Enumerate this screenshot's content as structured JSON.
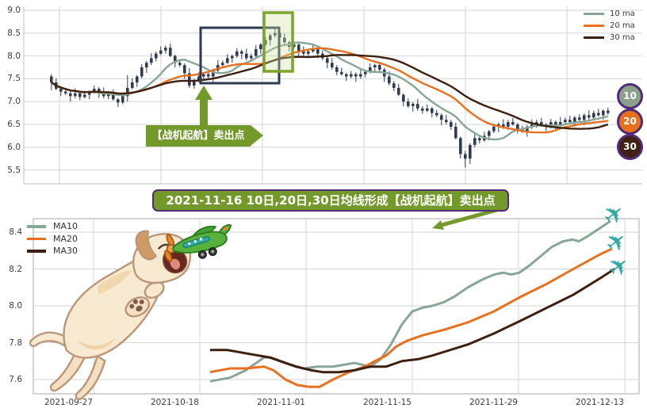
{
  "mid_banner": {
    "text": "2021-11-16 10日,20日,30日均线形成【战机起航】卖出点"
  },
  "icons": {
    "airplane": "✈"
  },
  "colors": {
    "annotation_green": "#73992b",
    "annotation_purple": "#532a75",
    "airplane_teal": "#2fa9a2",
    "candle": "#2f3b52"
  },
  "chart_data": [
    {
      "type": "candlestick",
      "y_tick_labels": [
        "9.0",
        "8.5",
        "8.0",
        "7.5",
        "7.0",
        "6.5",
        "6.0",
        "5.5"
      ],
      "ylim": [
        5.2,
        9.1
      ],
      "grid": true,
      "legend_position": "upper right",
      "series": [
        {
          "label": "10 ma",
          "window": 10,
          "color": "#87a796"
        },
        {
          "label": "20 ma",
          "window": 20,
          "color": "#e8701f"
        },
        {
          "label": "30 ma",
          "window": 30,
          "color": "#3d2010"
        }
      ],
      "badges": [
        {
          "label": "10",
          "color": "#8ba18c"
        },
        {
          "label": "20",
          "color": "#e7701e"
        },
        {
          "label": "30",
          "color": "#3f2013"
        }
      ],
      "annotations": {
        "sell_label": "【战机起航】卖出点"
      },
      "candles_format": "ohlc",
      "candles": [
        [
          7.55,
          7.6,
          7.25,
          7.42
        ],
        [
          7.42,
          7.51,
          7.25,
          7.28
        ],
        [
          7.28,
          7.31,
          7.12,
          7.22
        ],
        [
          7.22,
          7.29,
          7.14,
          7.18
        ],
        [
          7.18,
          7.22,
          7.0,
          7.12
        ],
        [
          7.12,
          7.29,
          7.07,
          7.18
        ],
        [
          7.18,
          7.23,
          7.03,
          7.1
        ],
        [
          7.1,
          7.24,
          7.07,
          7.15
        ],
        [
          7.15,
          7.25,
          7.05,
          7.22
        ],
        [
          7.22,
          7.35,
          7.18,
          7.28
        ],
        [
          7.28,
          7.32,
          7.08,
          7.2
        ],
        [
          7.2,
          7.31,
          7.07,
          7.12
        ],
        [
          7.12,
          7.23,
          7.05,
          7.18
        ],
        [
          7.18,
          7.27,
          7.02,
          7.05
        ],
        [
          7.05,
          7.08,
          6.88,
          6.98
        ],
        [
          6.98,
          7.19,
          6.94,
          7.12
        ],
        [
          7.12,
          7.58,
          7.0,
          7.3
        ],
        [
          7.3,
          7.51,
          7.27,
          7.42
        ],
        [
          7.42,
          7.58,
          7.32,
          7.55
        ],
        [
          7.55,
          7.82,
          7.51,
          7.75
        ],
        [
          7.75,
          7.89,
          7.63,
          7.85
        ],
        [
          7.85,
          8.06,
          7.8,
          7.95
        ],
        [
          7.95,
          8.1,
          7.88,
          8.05
        ],
        [
          8.05,
          8.21,
          8.02,
          8.12
        ],
        [
          8.12,
          8.23,
          8.05,
          8.18
        ],
        [
          8.18,
          8.27,
          7.97,
          8.0
        ],
        [
          8.0,
          8.03,
          7.75,
          7.85
        ],
        [
          7.85,
          7.92,
          7.76,
          7.8
        ],
        [
          7.8,
          7.84,
          7.5,
          7.62
        ],
        [
          7.62,
          7.73,
          7.3,
          7.35
        ],
        [
          7.35,
          7.5,
          7.28,
          7.45
        ],
        [
          7.45,
          7.64,
          7.42,
          7.55
        ],
        [
          7.55,
          7.63,
          7.45,
          7.6
        ],
        [
          7.6,
          7.67,
          7.51,
          7.55
        ],
        [
          7.55,
          7.72,
          7.43,
          7.68
        ],
        [
          7.68,
          7.91,
          7.63,
          7.8
        ],
        [
          7.8,
          7.9,
          7.73,
          7.85
        ],
        [
          7.85,
          8.04,
          7.82,
          7.95
        ],
        [
          7.95,
          8.03,
          7.85,
          8.0
        ],
        [
          8.0,
          8.17,
          7.96,
          8.1
        ],
        [
          8.1,
          8.14,
          7.93,
          8.05
        ],
        [
          8.05,
          8.16,
          7.9,
          7.95
        ],
        [
          7.95,
          8.05,
          7.88,
          8.0
        ],
        [
          8.0,
          8.24,
          7.97,
          8.15
        ],
        [
          8.15,
          8.28,
          8.05,
          8.25
        ],
        [
          8.25,
          8.42,
          8.21,
          8.35
        ],
        [
          8.35,
          8.49,
          8.23,
          8.45
        ],
        [
          8.45,
          8.62,
          8.4,
          8.5
        ],
        [
          8.5,
          8.55,
          8.33,
          8.4
        ],
        [
          8.4,
          8.49,
          8.27,
          8.3
        ],
        [
          8.3,
          8.33,
          8.1,
          8.2
        ],
        [
          8.2,
          8.32,
          8.16,
          8.25
        ],
        [
          8.25,
          8.29,
          7.98,
          8.1
        ],
        [
          8.1,
          8.21,
          8.0,
          8.05
        ],
        [
          8.05,
          8.15,
          7.98,
          8.1
        ],
        [
          8.1,
          8.24,
          8.07,
          8.15
        ],
        [
          8.15,
          8.18,
          7.95,
          8.05
        ],
        [
          8.05,
          8.12,
          7.91,
          7.95
        ],
        [
          7.95,
          7.99,
          7.73,
          7.85
        ],
        [
          7.85,
          7.96,
          7.7,
          7.75
        ],
        [
          7.75,
          7.8,
          7.58,
          7.65
        ],
        [
          7.65,
          7.74,
          7.57,
          7.6
        ],
        [
          7.6,
          7.63,
          7.45,
          7.55
        ],
        [
          7.55,
          7.67,
          7.51,
          7.6
        ],
        [
          7.6,
          7.64,
          7.43,
          7.55
        ],
        [
          7.55,
          7.71,
          7.5,
          7.6
        ],
        [
          7.6,
          7.7,
          7.53,
          7.65
        ],
        [
          7.65,
          7.84,
          7.62,
          7.75
        ],
        [
          7.75,
          7.83,
          7.65,
          7.8
        ],
        [
          7.8,
          7.87,
          7.66,
          7.7
        ],
        [
          7.7,
          7.74,
          7.43,
          7.55
        ],
        [
          7.55,
          7.66,
          7.35,
          7.4
        ],
        [
          7.4,
          7.45,
          7.23,
          7.3
        ],
        [
          7.3,
          7.39,
          7.12,
          7.15
        ],
        [
          7.15,
          7.18,
          6.9,
          7.0
        ],
        [
          7.0,
          7.07,
          6.86,
          6.9
        ],
        [
          6.9,
          6.99,
          6.78,
          6.95
        ],
        [
          6.95,
          7.06,
          6.8,
          6.85
        ],
        [
          6.85,
          6.9,
          6.73,
          6.8
        ],
        [
          6.8,
          6.94,
          6.77,
          6.85
        ],
        [
          6.85,
          6.88,
          6.65,
          6.75
        ],
        [
          6.75,
          6.82,
          6.66,
          6.7
        ],
        [
          6.7,
          6.74,
          6.48,
          6.6
        ],
        [
          6.6,
          6.71,
          6.5,
          6.55
        ],
        [
          6.55,
          6.6,
          6.38,
          6.45
        ],
        [
          6.45,
          6.54,
          6.17,
          6.2
        ],
        [
          6.2,
          6.23,
          5.75,
          5.85
        ],
        [
          5.85,
          5.92,
          5.55,
          5.75
        ],
        [
          5.75,
          6.09,
          5.63,
          6.05
        ],
        [
          6.05,
          6.31,
          6.0,
          6.2
        ],
        [
          6.2,
          6.25,
          6.08,
          6.15
        ],
        [
          6.15,
          6.34,
          6.12,
          6.25
        ],
        [
          6.25,
          6.38,
          6.15,
          6.35
        ],
        [
          6.35,
          6.52,
          6.31,
          6.45
        ],
        [
          6.45,
          6.54,
          6.33,
          6.5
        ],
        [
          6.5,
          6.61,
          6.4,
          6.45
        ],
        [
          6.45,
          6.6,
          6.38,
          6.55
        ],
        [
          6.55,
          6.64,
          6.47,
          6.5
        ],
        [
          6.5,
          6.53,
          6.3,
          6.4
        ],
        [
          6.4,
          6.47,
          6.31,
          6.35
        ],
        [
          6.35,
          6.49,
          6.23,
          6.45
        ],
        [
          6.45,
          6.61,
          6.4,
          6.5
        ],
        [
          6.5,
          6.6,
          6.43,
          6.55
        ],
        [
          6.55,
          6.64,
          6.47,
          6.5
        ],
        [
          6.5,
          6.53,
          6.35,
          6.45
        ],
        [
          6.45,
          6.62,
          6.41,
          6.55
        ],
        [
          6.55,
          6.59,
          6.38,
          6.5
        ],
        [
          6.5,
          6.66,
          6.45,
          6.55
        ],
        [
          6.55,
          6.65,
          6.48,
          6.6
        ],
        [
          6.6,
          6.69,
          6.52,
          6.55
        ],
        [
          6.55,
          6.68,
          6.45,
          6.65
        ],
        [
          6.65,
          6.72,
          6.56,
          6.6
        ],
        [
          6.6,
          6.74,
          6.48,
          6.7
        ],
        [
          6.7,
          6.81,
          6.6,
          6.65
        ],
        [
          6.65,
          6.8,
          6.58,
          6.75
        ],
        [
          6.75,
          6.84,
          6.67,
          6.7
        ],
        [
          6.7,
          6.83,
          6.6,
          6.8
        ],
        [
          6.8,
          6.87,
          6.71,
          6.75
        ]
      ]
    },
    {
      "type": "line",
      "y_tick_labels": [
        "8.4",
        "8.2",
        "8.0",
        "7.8",
        "7.6"
      ],
      "x_tick_labels": [
        "2021-09-27",
        "2021-10-18",
        "2021-11-01",
        "2021-11-15",
        "2021-11-29",
        "2021-12-13"
      ],
      "ylim": [
        7.53,
        8.48
      ],
      "grid": true,
      "legend_position": "upper left",
      "points_format": "[x_px, value]",
      "series": [
        {
          "label": "MA10",
          "color": "#87a796",
          "points": [
            [
              265,
              7.59
            ],
            [
              290,
              7.61
            ],
            [
              310,
              7.65
            ],
            [
              333,
              7.72
            ],
            [
              342,
              7.72
            ],
            [
              360,
              7.69
            ],
            [
              383,
              7.66
            ],
            [
              400,
              7.67
            ],
            [
              420,
              7.67
            ],
            [
              447,
              7.69
            ],
            [
              467,
              7.67
            ],
            [
              480,
              7.71
            ],
            [
              493,
              7.79
            ],
            [
              507,
              7.9
            ],
            [
              520,
              7.97
            ],
            [
              533,
              7.99
            ],
            [
              545,
              8.0
            ],
            [
              560,
              8.02
            ],
            [
              573,
              8.05
            ],
            [
              590,
              8.1
            ],
            [
              607,
              8.14
            ],
            [
              623,
              8.17
            ],
            [
              635,
              8.18
            ],
            [
              645,
              8.17
            ],
            [
              655,
              8.18
            ],
            [
              668,
              8.22
            ],
            [
              682,
              8.27
            ],
            [
              696,
              8.32
            ],
            [
              710,
              8.35
            ],
            [
              722,
              8.36
            ],
            [
              730,
              8.35
            ],
            [
              742,
              8.38
            ],
            [
              756,
              8.42
            ],
            [
              770,
              8.46
            ]
          ]
        },
        {
          "label": "MA20",
          "color": "#e8701f",
          "points": [
            [
              265,
              7.64
            ],
            [
              290,
              7.66
            ],
            [
              310,
              7.66
            ],
            [
              333,
              7.67
            ],
            [
              345,
              7.65
            ],
            [
              360,
              7.6
            ],
            [
              375,
              7.57
            ],
            [
              390,
              7.56
            ],
            [
              403,
              7.56
            ],
            [
              420,
              7.6
            ],
            [
              440,
              7.64
            ],
            [
              460,
              7.67
            ],
            [
              473,
              7.7
            ],
            [
              487,
              7.73
            ],
            [
              500,
              7.78
            ],
            [
              513,
              7.81
            ],
            [
              533,
              7.84
            ],
            [
              560,
              7.87
            ],
            [
              590,
              7.91
            ],
            [
              623,
              7.97
            ],
            [
              657,
              8.05
            ],
            [
              690,
              8.12
            ],
            [
              723,
              8.2
            ],
            [
              757,
              8.28
            ],
            [
              772,
              8.31
            ]
          ]
        },
        {
          "label": "MA30",
          "color": "#3d2010",
          "points": [
            [
              265,
              7.76
            ],
            [
              287,
              7.76
            ],
            [
              313,
              7.74
            ],
            [
              340,
              7.72
            ],
            [
              373,
              7.67
            ],
            [
              393,
              7.65
            ],
            [
              407,
              7.64
            ],
            [
              427,
              7.64
            ],
            [
              447,
              7.65
            ],
            [
              467,
              7.67
            ],
            [
              487,
              7.67
            ],
            [
              507,
              7.7
            ],
            [
              527,
              7.71
            ],
            [
              545,
              7.73
            ],
            [
              560,
              7.75
            ],
            [
              590,
              7.79
            ],
            [
              623,
              7.85
            ],
            [
              657,
              7.92
            ],
            [
              690,
              7.99
            ],
            [
              723,
              8.06
            ],
            [
              757,
              8.15
            ],
            [
              775,
              8.2
            ]
          ]
        }
      ]
    }
  ]
}
